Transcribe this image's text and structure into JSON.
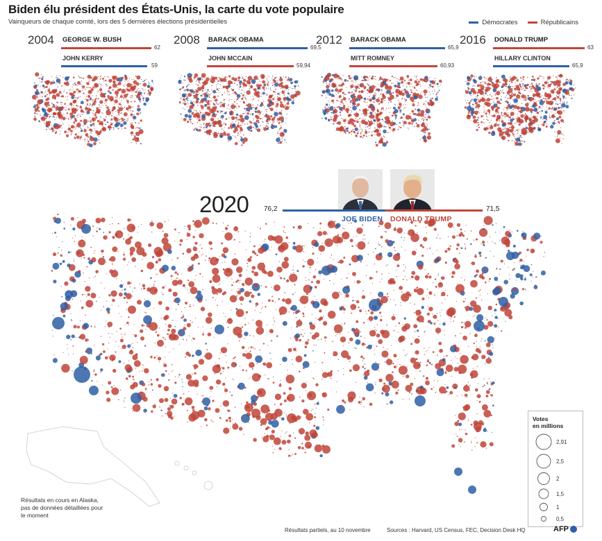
{
  "header": {
    "title": "Biden élu président des États-Unis, la carte du vote populaire",
    "subtitle": "Vainqueurs de chaque comté, lors des 5 dernières élections présidentielles"
  },
  "legend": {
    "democrats": "Démocrates",
    "republicans": "Républicains",
    "dem_color": "#2e5fa5",
    "rep_color": "#c0453a"
  },
  "elections": [
    {
      "year": "2004",
      "winner": "George W. Bush",
      "winner_value": "62",
      "winner_party": "rep",
      "loser": "John Kerry",
      "loser_value": "59",
      "loser_party": "dem"
    },
    {
      "year": "2008",
      "winner": "Barack Obama",
      "winner_value": "69,5",
      "winner_party": "dem",
      "loser": "John McCain",
      "loser_value": "59,94",
      "loser_party": "rep"
    },
    {
      "year": "2012",
      "winner": "Barack Obama",
      "winner_value": "65,9",
      "winner_party": "dem",
      "loser": "Mitt Romney",
      "loser_value": "60,93",
      "loser_party": "rep"
    },
    {
      "year": "2016",
      "winner": "Donald Trump",
      "winner_value": "63",
      "winner_party": "rep",
      "loser": "Hillary Clinton",
      "loser_value": "65,9",
      "loser_party": "dem"
    }
  ],
  "main": {
    "year": "2020",
    "biden_name": "Joe Biden",
    "biden_value": "76,2",
    "trump_name": "Donald Trump",
    "trump_value": "71,5"
  },
  "size_legend": {
    "title_line1": "Votes",
    "title_line2": "en millions",
    "items": [
      "2,91",
      "2,5",
      "2",
      "1,5",
      "1",
      "0,5"
    ]
  },
  "notes": {
    "alaska": "Résultats en cours en Alaska, pas de données détaillées pour le moment",
    "partial": "Résultats partiels, au 10 novembre",
    "sources": "Sources : Harvard, US Census, FEC, Decision Desk HQ",
    "logo": "AFP"
  }
}
